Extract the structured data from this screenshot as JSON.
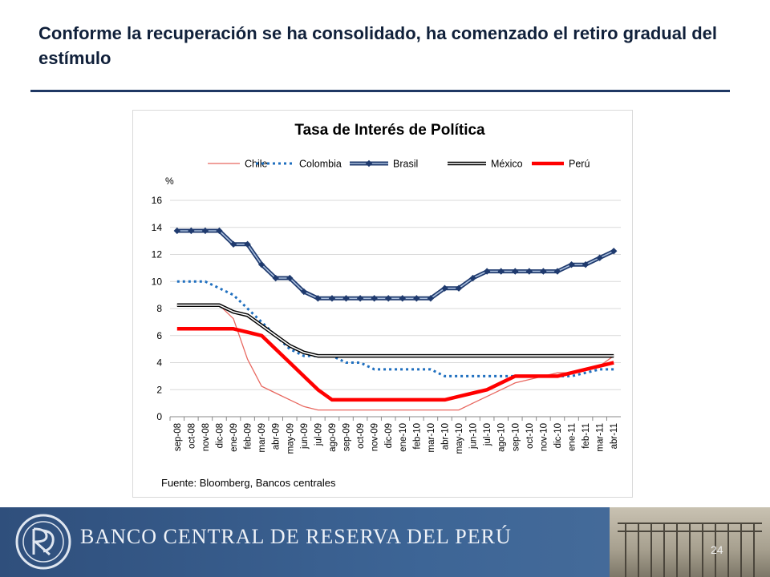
{
  "slide": {
    "title": "Conforme la recuperación se ha consolidado, ha comenzado el retiro gradual del estímulo",
    "page_number": "24"
  },
  "footer": {
    "bank_name": "BANCO CENTRAL DE RESERVA DEL PERÚ",
    "accent_color": "#365b8c"
  },
  "chart_data": {
    "type": "line",
    "title": "Tasa de Interés de Política",
    "ylabel": "%",
    "ylim": [
      0,
      16
    ],
    "yticks": [
      0,
      2,
      4,
      6,
      8,
      10,
      12,
      14,
      16
    ],
    "grid": true,
    "legend": "top",
    "source": "Fuente: Bloomberg, Bancos centrales",
    "categories": [
      "sep-08",
      "oct-08",
      "nov-08",
      "dic-08",
      "ene-09",
      "feb-09",
      "mar-09",
      "abr-09",
      "may-09",
      "jun-09",
      "jul-09",
      "ago-09",
      "sep-09",
      "oct-09",
      "nov-09",
      "dic-09",
      "ene-10",
      "feb-10",
      "mar-10",
      "abr-10",
      "may-10",
      "jun-10",
      "jul-10",
      "ago-10",
      "sep-10",
      "oct-10",
      "nov-10",
      "dic-10",
      "ene-11",
      "feb-11",
      "mar-11",
      "abr-11"
    ],
    "series": [
      {
        "name": "Chile",
        "color": "#e8675f",
        "values": [
          8.25,
          8.25,
          8.25,
          8.25,
          7.25,
          4.25,
          2.25,
          1.75,
          1.25,
          0.75,
          0.5,
          0.5,
          0.5,
          0.5,
          0.5,
          0.5,
          0.5,
          0.5,
          0.5,
          0.5,
          0.5,
          1.0,
          1.5,
          2.0,
          2.5,
          2.75,
          3.0,
          3.25,
          3.25,
          3.5,
          3.75,
          4.5
        ]
      },
      {
        "name": "Colombia",
        "color": "#1f6fbf",
        "values": [
          10.0,
          10.0,
          10.0,
          9.5,
          9.0,
          8.0,
          7.0,
          6.0,
          5.0,
          4.5,
          4.5,
          4.5,
          4.0,
          4.0,
          3.5,
          3.5,
          3.5,
          3.5,
          3.5,
          3.0,
          3.0,
          3.0,
          3.0,
          3.0,
          3.0,
          3.0,
          3.0,
          3.0,
          3.0,
          3.25,
          3.5,
          3.5
        ]
      },
      {
        "name": "Brasil",
        "color": "#1f3a6e",
        "values": [
          13.75,
          13.75,
          13.75,
          13.75,
          12.75,
          12.75,
          11.25,
          10.25,
          10.25,
          9.25,
          8.75,
          8.75,
          8.75,
          8.75,
          8.75,
          8.75,
          8.75,
          8.75,
          8.75,
          9.5,
          9.5,
          10.25,
          10.75,
          10.75,
          10.75,
          10.75,
          10.75,
          10.75,
          11.25,
          11.25,
          11.75,
          12.25
        ]
      },
      {
        "name": "México",
        "color": "#000000",
        "values": [
          8.25,
          8.25,
          8.25,
          8.25,
          7.75,
          7.5,
          6.75,
          6.0,
          5.25,
          4.75,
          4.5,
          4.5,
          4.5,
          4.5,
          4.5,
          4.5,
          4.5,
          4.5,
          4.5,
          4.5,
          4.5,
          4.5,
          4.5,
          4.5,
          4.5,
          4.5,
          4.5,
          4.5,
          4.5,
          4.5,
          4.5,
          4.5
        ]
      },
      {
        "name": "Perú",
        "color": "#ff0000",
        "values": [
          6.5,
          6.5,
          6.5,
          6.5,
          6.5,
          6.25,
          6.0,
          5.0,
          4.0,
          3.0,
          2.0,
          1.25,
          1.25,
          1.25,
          1.25,
          1.25,
          1.25,
          1.25,
          1.25,
          1.25,
          1.5,
          1.75,
          2.0,
          2.5,
          3.0,
          3.0,
          3.0,
          3.0,
          3.25,
          3.5,
          3.75,
          4.0
        ]
      }
    ]
  }
}
